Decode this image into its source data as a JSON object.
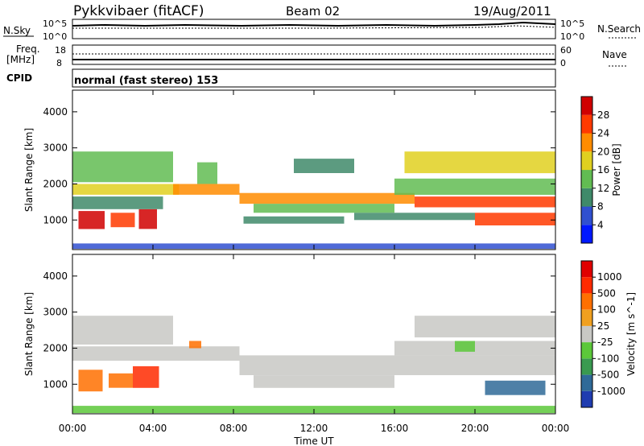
{
  "header": {
    "title": "Pykkvibaer (fitACF)",
    "beam": "Beam 02",
    "date": "19/Aug/2011"
  },
  "top_panels": {
    "nsky_label": "N.Sky",
    "nsky_ticks": [
      "10^5",
      "10^0"
    ],
    "nsearch_label": "N.Search",
    "nsearch_ticks": [
      "10^5",
      "10^0"
    ],
    "freq_label": "Freq.",
    "freq_unit": "[MHz]",
    "freq_ticks": [
      "18",
      "8"
    ],
    "nave_label": "Nave",
    "nave_ticks": [
      "60",
      "0"
    ],
    "cpid_label": "CPID",
    "cpid_value": "normal (fast stereo) 153"
  },
  "chart_data": [
    {
      "type": "heatmap",
      "name": "power",
      "ylabel": "Slant Range [km]",
      "yticks": [
        "4000",
        "3000",
        "2000",
        "1000"
      ],
      "ylim": [
        180,
        4600
      ],
      "xlim": [
        0,
        24
      ],
      "colorbar": {
        "label": "Power [dB]",
        "ticks": [
          "28",
          "24",
          "20",
          "16",
          "12",
          "8",
          "4"
        ],
        "colors": [
          "#0018ff",
          "#3050d0",
          "#3f8a6a",
          "#62bc52",
          "#e0d020",
          "#ff8c00",
          "#ff3a00",
          "#d00000"
        ]
      },
      "bands": [
        {
          "t0": 0.0,
          "t1": 5.3,
          "r0": 1700,
          "r1": 2000,
          "level": 4
        },
        {
          "t0": 0.0,
          "t1": 5.0,
          "r0": 2050,
          "r1": 2900,
          "level": 3
        },
        {
          "t0": 0.3,
          "t1": 1.6,
          "r0": 750,
          "r1": 1250,
          "level": 7
        },
        {
          "t0": 1.9,
          "t1": 3.1,
          "r0": 800,
          "r1": 1200,
          "level": 6
        },
        {
          "t0": 3.3,
          "t1": 4.2,
          "r0": 750,
          "r1": 1300,
          "level": 7
        },
        {
          "t0": 0.0,
          "t1": 4.5,
          "r0": 1300,
          "r1": 1650,
          "level": 2
        },
        {
          "t0": 5.0,
          "t1": 8.3,
          "r0": 1700,
          "r1": 2000,
          "level": 5
        },
        {
          "t0": 6.2,
          "t1": 7.2,
          "r0": 2000,
          "r1": 2600,
          "level": 3
        },
        {
          "t0": 8.3,
          "t1": 17.0,
          "r0": 1450,
          "r1": 1750,
          "level": 5
        },
        {
          "t0": 9.0,
          "t1": 16.0,
          "r0": 1200,
          "r1": 1450,
          "level": 3
        },
        {
          "t0": 8.5,
          "t1": 13.5,
          "r0": 900,
          "r1": 1100,
          "level": 2
        },
        {
          "t0": 14.0,
          "t1": 20.0,
          "r0": 1000,
          "r1": 1200,
          "level": 2
        },
        {
          "t0": 17.0,
          "t1": 24.0,
          "r0": 1350,
          "r1": 1650,
          "level": 6
        },
        {
          "t0": 16.0,
          "t1": 24.0,
          "r0": 1700,
          "r1": 2150,
          "level": 3
        },
        {
          "t0": 16.5,
          "t1": 24.0,
          "r0": 2300,
          "r1": 2900,
          "level": 4
        },
        {
          "t0": 20.0,
          "t1": 24.0,
          "r0": 850,
          "r1": 1200,
          "level": 6
        },
        {
          "t0": 11.0,
          "t1": 14.0,
          "r0": 2300,
          "r1": 2700,
          "level": 2
        },
        {
          "t0": 0.0,
          "t1": 24.0,
          "r0": 200,
          "r1": 350,
          "level": 1
        }
      ]
    },
    {
      "type": "heatmap",
      "name": "velocity",
      "ylabel": "Slant Range [km]",
      "yticks": [
        "4000",
        "3000",
        "2000",
        "1000"
      ],
      "ylim": [
        180,
        4600
      ],
      "xlim": [
        0,
        24
      ],
      "xticks": [
        "00:00",
        "04:00",
        "08:00",
        "12:00",
        "16:00",
        "20:00",
        "00:00"
      ],
      "xlabel": "Time UT",
      "colorbar": {
        "label": "Velocity [m s^-1]",
        "ticks": [
          "1000",
          "500",
          "100",
          "25",
          "-25",
          "-100",
          "-500",
          "-1000"
        ],
        "colors": [
          "#1f3cb0",
          "#2f6a98",
          "#3a9a50",
          "#5cc83a",
          "#c8c8c4",
          "#f0a020",
          "#ff7000",
          "#ff2a00",
          "#e00000"
        ]
      },
      "bands": [
        {
          "t0": 0.0,
          "t1": 8.3,
          "r0": 1650,
          "r1": 2050,
          "level": 4
        },
        {
          "t0": 0.0,
          "t1": 5.0,
          "r0": 2100,
          "r1": 2900,
          "level": 4
        },
        {
          "t0": 8.3,
          "t1": 24.0,
          "r0": 1250,
          "r1": 1800,
          "level": 4
        },
        {
          "t0": 9.0,
          "t1": 16.0,
          "r0": 900,
          "r1": 1250,
          "level": 4
        },
        {
          "t0": 16.0,
          "t1": 24.0,
          "r0": 1800,
          "r1": 2200,
          "level": 4
        },
        {
          "t0": 17.0,
          "t1": 24.0,
          "r0": 2300,
          "r1": 2900,
          "level": 4
        },
        {
          "t0": 0.3,
          "t1": 1.5,
          "r0": 800,
          "r1": 1400,
          "level": 6
        },
        {
          "t0": 1.8,
          "t1": 3.0,
          "r0": 900,
          "r1": 1300,
          "level": 6
        },
        {
          "t0": 3.0,
          "t1": 4.3,
          "r0": 900,
          "r1": 1500,
          "level": 7
        },
        {
          "t0": 20.5,
          "t1": 23.5,
          "r0": 700,
          "r1": 1100,
          "level": 1
        },
        {
          "t0": 19.0,
          "t1": 20.0,
          "r0": 1900,
          "r1": 2200,
          "level": 3
        },
        {
          "t0": 5.8,
          "t1": 6.4,
          "r0": 2000,
          "r1": 2200,
          "level": 6
        },
        {
          "t0": 0.0,
          "t1": 24.0,
          "r0": 200,
          "r1": 400,
          "level": 3
        }
      ]
    }
  ]
}
